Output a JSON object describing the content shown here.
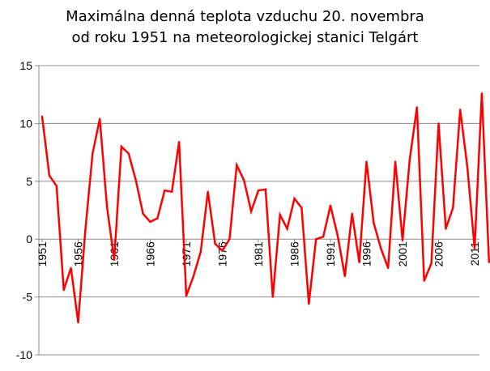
{
  "chart_data": {
    "type": "line",
    "title_lines": [
      "Maximálna denná teplota vzduchu 20. novembra",
      "od roku 1951 na meteorologickej stanici Telgárt"
    ],
    "xlabel": "",
    "ylabel": "",
    "ylim": [
      -10,
      15
    ],
    "y_ticks": [
      15,
      10,
      5,
      0,
      -5,
      -10
    ],
    "x_ticks": [
      1951,
      1956,
      1961,
      1966,
      1971,
      1976,
      1981,
      1986,
      1991,
      1996,
      2001,
      2006,
      2011
    ],
    "grid": "horizontal",
    "legend": "none",
    "line_color": "#ff0000",
    "series": [
      {
        "x": [
          1951,
          1952,
          1953,
          1954,
          1955,
          1956,
          1957,
          1958,
          1959,
          1960,
          1961,
          1962,
          1963,
          1964,
          1965,
          1966,
          1967,
          1968,
          1969,
          1970,
          1971,
          1972,
          1973,
          1974,
          1975,
          1976,
          1977,
          1978,
          1979,
          1980,
          1981,
          1982,
          1983,
          1984,
          1985,
          1986,
          1987,
          1988,
          1989,
          1990,
          1991,
          1992,
          1993,
          1994,
          1995,
          1996,
          1997,
          1998,
          1999,
          2000,
          2001,
          2002,
          2003,
          2004,
          2005,
          2006,
          2007,
          2008,
          2009,
          2010,
          2011,
          2012,
          2013
        ],
        "values": [
          10.6,
          5.5,
          4.6,
          -4.4,
          -2.5,
          -7.2,
          0.8,
          7.4,
          10.4,
          2.8,
          -1.8,
          8.0,
          7.4,
          5.1,
          2.2,
          1.5,
          1.8,
          4.2,
          4.1,
          8.4,
          -4.9,
          -3.2,
          -1.1,
          4.1,
          -0.4,
          -1.0,
          0.0,
          6.4,
          5.1,
          2.4,
          4.2,
          4.3,
          -5.0,
          2.1,
          0.9,
          3.5,
          2.7,
          -5.6,
          0.0,
          0.2,
          2.9,
          0.3,
          -3.2,
          2.2,
          -2.0,
          6.7,
          1.4,
          -0.8,
          -2.5,
          6.7,
          -0.1,
          6.9,
          11.4,
          -3.6,
          -2.1,
          10.0,
          0.9,
          2.7,
          11.2,
          6.2,
          -0.8,
          12.6,
          -2.0
        ]
      }
    ]
  }
}
